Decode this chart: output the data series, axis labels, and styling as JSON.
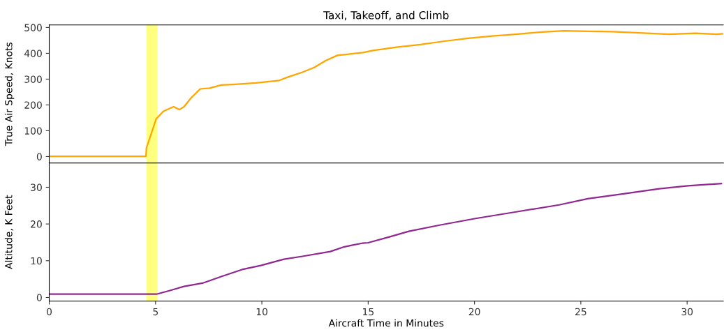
{
  "chart_data": [
    {
      "type": "line",
      "title": "Taxi, Takeoff, and Climb",
      "ylabel": "True Air Speed, Knots",
      "xlim": [
        0,
        31.7
      ],
      "xticks": [
        0,
        5,
        10,
        15,
        20,
        25,
        30
      ],
      "ylim": [
        -25,
        510
      ],
      "yticks": [
        0,
        100,
        200,
        300,
        400,
        500
      ],
      "tick_labels": "y",
      "series": [
        {
          "color": "#ffa500",
          "x": [
            0,
            4.55,
            4.57,
            5.03,
            5.36,
            5.68,
            5.85,
            6.12,
            6.34,
            6.67,
            7.1,
            7.54,
            8.09,
            8.63,
            9.73,
            10.82,
            11.26,
            11.91,
            12.46,
            13.01,
            13.55,
            14.1,
            14.75,
            15.22,
            16.34,
            17.46,
            18.59,
            19.71,
            20.84,
            21.96,
            23.08,
            24.2,
            25.33,
            26.45,
            27.57,
            29.14,
            30.38,
            31.39,
            31.7
          ],
          "values": [
            1,
            1,
            33,
            146,
            175,
            187,
            193,
            182,
            193,
            227,
            262,
            265,
            277,
            279,
            285,
            295,
            309,
            327,
            345,
            372,
            392,
            397,
            403,
            411,
            424,
            434,
            447,
            458,
            467,
            474,
            482,
            487,
            485,
            484,
            480,
            474,
            478,
            474,
            476
          ]
        }
      ],
      "bands": [
        {
          "axis": "x",
          "from": 4.57,
          "to": 5.09,
          "color": "#ffff80"
        }
      ]
    },
    {
      "type": "line",
      "xlabel": "Aircraft Time in Minutes",
      "ylabel": "Altitude, K Feet",
      "xlim": [
        0,
        31.7
      ],
      "xticks": [
        0,
        5,
        10,
        15,
        20,
        25,
        30
      ],
      "ylim": [
        -1,
        36.6
      ],
      "yticks": [
        0,
        10,
        20,
        30
      ],
      "series": [
        {
          "color": "#912891",
          "x": [
            0,
            5.05,
            5.68,
            6.34,
            7.21,
            8.09,
            9.07,
            9.95,
            11.04,
            11.91,
            13.22,
            13.88,
            14.75,
            15.0,
            16.0,
            16.91,
            18.36,
            20.05,
            21.96,
            23.98,
            25.33,
            27.01,
            28.69,
            30.04,
            31.61
          ],
          "values": [
            0.9,
            0.9,
            1.9,
            3.0,
            3.9,
            5.7,
            7.6,
            8.7,
            10.4,
            11.2,
            12.5,
            13.8,
            14.8,
            14.9,
            16.5,
            18.0,
            19.7,
            21.5,
            23.3,
            25.2,
            26.9,
            28.2,
            29.6,
            30.4,
            31.0
          ]
        }
      ],
      "bands": [
        {
          "axis": "x",
          "from": 4.57,
          "to": 5.09,
          "color": "#ffff80"
        }
      ]
    }
  ]
}
